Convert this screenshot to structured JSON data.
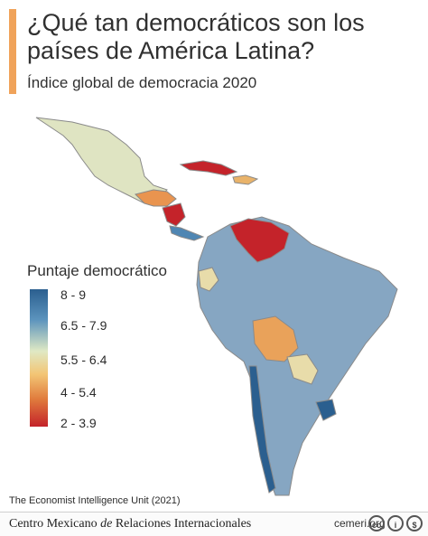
{
  "header": {
    "title": "¿Qué tan democráticos son los países de América Latina?",
    "subtitle": "Índice global de democracia 2020"
  },
  "legend": {
    "title": "Puntaje democrático",
    "items": [
      "8 - 9",
      "6.5 - 7.9",
      "5.5 - 6.4",
      "4 - 5.4",
      "2 - 3.9"
    ]
  },
  "colors": {
    "score_8_9": "#2b5f8f",
    "score_6_5_7_9": "#7fa6c4",
    "score_5_5_6_4": "#e8dcaa",
    "score_4_5_4": "#e9944f",
    "score_2_3_9": "#c4232a"
  },
  "source": "The Economist Intelligence Unit (2021)",
  "footer": {
    "org_pre": "Centro Mexicano ",
    "org_em": "de",
    "org_post": " Relaciones Internacionales",
    "site": "cemeri.org",
    "license_icons": [
      "cc-icon",
      "attribution-icon",
      "noncommercial-icon"
    ]
  }
}
